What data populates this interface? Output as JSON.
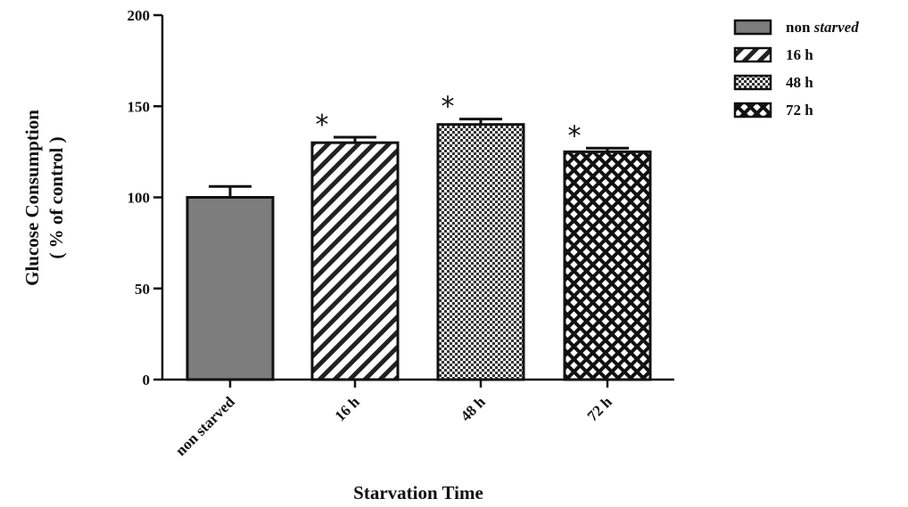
{
  "chart_data": {
    "type": "bar",
    "categories": [
      "non starved",
      "16 h",
      "48 h",
      "72 h"
    ],
    "values": [
      100,
      130,
      140,
      125
    ],
    "errors": [
      6,
      3,
      3,
      2
    ],
    "significance": [
      "",
      "*",
      "*",
      "*"
    ],
    "xlabel": "Starvation Time",
    "ylabel_line1": "Glucose Consumption",
    "ylabel_line2": "( % of control )",
    "ylim": [
      0,
      200
    ],
    "yticks": [
      "0",
      "50",
      "100",
      "150",
      "200"
    ],
    "ytick_values": [
      0,
      50,
      100,
      150,
      200
    ],
    "patterns": [
      "solid-gray",
      "diagonal-stripes",
      "fine-checker",
      "crosshatch"
    ],
    "legend": [
      {
        "label": "non ",
        "label_em": "starved"
      },
      {
        "label": "16 h",
        "label_em": ""
      },
      {
        "label": "48 h",
        "label_em": ""
      },
      {
        "label": "72 h",
        "label_em": ""
      }
    ],
    "legend_position": "top-right",
    "grid": false,
    "colors": {
      "bar_fill": "#7d7d7d",
      "outline": "#111111"
    }
  }
}
